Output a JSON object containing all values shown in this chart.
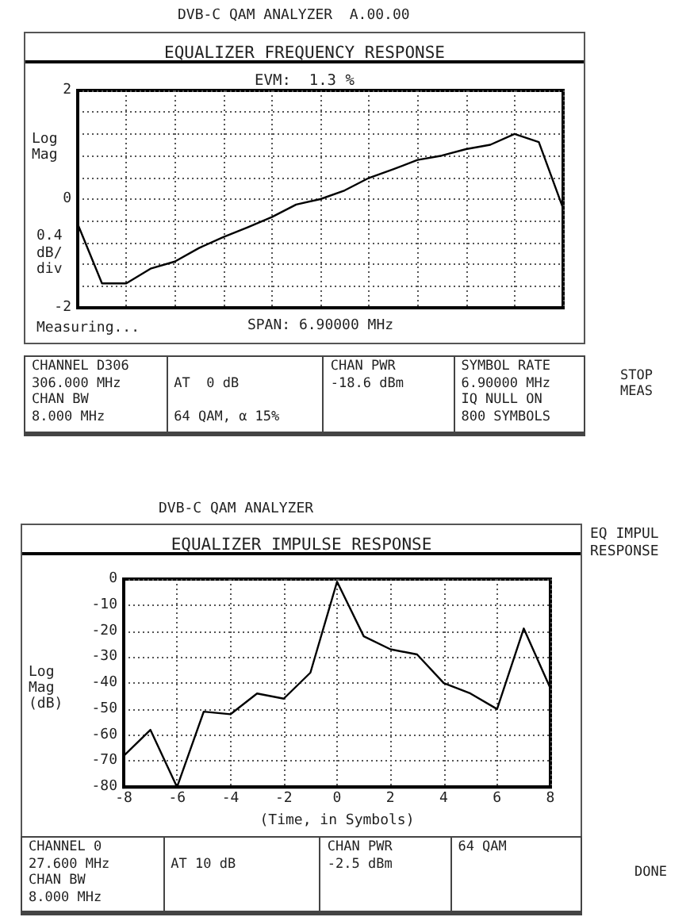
{
  "chart_data": [
    {
      "type": "line",
      "title": "EQUALIZER FREQUENCY RESPONSE",
      "subtitle": "EVM:  1.3 %",
      "xlabel": "SPAN: 6.90000 MHz",
      "ylabel": "Log\nMag",
      "categories": [
        null,
        null,
        null,
        null,
        null,
        null,
        null,
        null,
        null,
        null,
        null,
        null,
        null,
        null,
        null,
        null,
        null,
        null,
        null,
        null,
        null
      ],
      "series": [
        {
          "color": "#000000",
          "values": [
            -0.46,
            -1.55,
            -1.55,
            -1.28,
            -1.15,
            -0.9,
            -0.7,
            -0.52,
            -0.33,
            -0.1,
            0.0,
            0.16,
            0.39,
            0.55,
            0.72,
            0.8,
            0.92,
            1.0,
            1.2,
            1.05,
            -0.17
          ]
        }
      ],
      "ylim": [
        -2,
        2
      ],
      "yticks": [
        -2,
        {
          "value": -1.6,
          "label": null
        },
        {
          "value": -1.2,
          "label": null
        },
        {
          "value": -0.8,
          "label": null
        },
        {
          "value": -0.4,
          "label": null
        },
        0,
        {
          "value": 0.4,
          "label": null
        },
        {
          "value": 0.8,
          "label": null
        },
        {
          "value": 1.2,
          "label": null
        },
        {
          "value": 1.6,
          "label": null
        },
        2
      ],
      "grid": true,
      "tick_labels": "y",
      "marker": "none",
      "line_style": "solid",
      "annotations": [
        "DVB-C QAM ANALYZER  A.00.00",
        "STOP\nMEAS",
        "CHANNEL D306\n306.000 MHz\nCHAN BW\n8.000 MHz",
        "\nAT  0 dB\n\n64 QAM, α 15%",
        "CHAN PWR\n-18.6 dBm",
        "SYMBOL RATE\n6.90000 MHz\nIQ NULL ON\n800 SYMBOLS",
        "0.4\ndB/\ndiv",
        "Measuring..."
      ]
    },
    {
      "type": "line",
      "title": "EQUALIZER IMPULSE RESPONSE",
      "xlabel": "(Time, in Symbols)",
      "ylabel": "Log\nMag\n(dB)",
      "x": [
        -8,
        -7,
        -6,
        -5,
        -4,
        -3,
        -2,
        -1,
        0,
        1,
        2,
        3,
        4,
        5,
        6,
        7,
        8
      ],
      "series": [
        {
          "color": "#000000",
          "values": [
            -68,
            -58,
            -80,
            -51,
            -52,
            -44,
            -46,
            -36,
            -1,
            -22,
            -27,
            -29,
            -40,
            -44,
            -50,
            -19,
            -42
          ]
        }
      ],
      "xlim": [
        -8,
        8
      ],
      "xticks": [
        -8,
        -6,
        -4,
        -2,
        0,
        2,
        4,
        6,
        8
      ],
      "ylim": [
        -80,
        0
      ],
      "yticks": [
        -80,
        -70,
        -60,
        -50,
        -40,
        -30,
        -20,
        -10,
        0
      ],
      "grid": true,
      "marker": "none",
      "line_style": "solid",
      "annotations": [
        "DVB-C QAM ANALYZER",
        "DONE",
        "CHANNEL 0\n27.600 MHz\nCHAN BW\n8.000 MHz",
        "\nAT 10 dB",
        "CHAN PWR\n-2.5 dBm",
        "64 QAM",
        "EQ IMPUL\nRESPONSE"
      ]
    }
  ]
}
